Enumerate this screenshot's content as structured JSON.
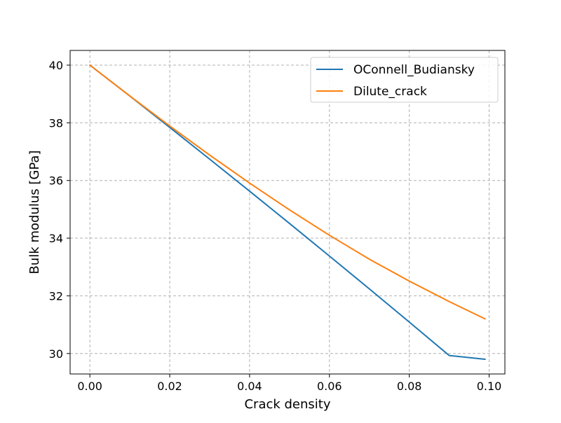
{
  "chart_data": {
    "type": "line",
    "title": "",
    "xlabel": "Crack density",
    "ylabel": "Bulk modulus [GPa]",
    "xlim": [
      -0.00495,
      0.10395
    ],
    "ylim": [
      29.29,
      40.51
    ],
    "x_ticks": [
      0.0,
      0.02,
      0.04,
      0.06,
      0.08,
      0.1
    ],
    "x_tick_labels": [
      "0.00",
      "0.02",
      "0.04",
      "0.06",
      "0.08",
      "0.10"
    ],
    "y_ticks": [
      30,
      32,
      34,
      36,
      38,
      40
    ],
    "y_tick_labels": [
      "30",
      "32",
      "34",
      "36",
      "38",
      "40"
    ],
    "grid": true,
    "legend_position": "top-right",
    "x": [
      0.0,
      0.01,
      0.02,
      0.03,
      0.04,
      0.05,
      0.06,
      0.07,
      0.08,
      0.09,
      0.099
    ],
    "series": [
      {
        "name": "OConnell_Budiansky",
        "color": "#1f77b4",
        "values": [
          40.0,
          38.93,
          37.84,
          36.74,
          35.63,
          34.51,
          33.38,
          32.24,
          31.09,
          29.93,
          29.8
        ]
      },
      {
        "name": "Dilute_crack",
        "color": "#ff7f0e",
        "values": [
          40.0,
          38.93,
          37.89,
          36.88,
          35.91,
          34.98,
          34.1,
          33.27,
          32.51,
          31.8,
          31.2
        ]
      }
    ]
  }
}
